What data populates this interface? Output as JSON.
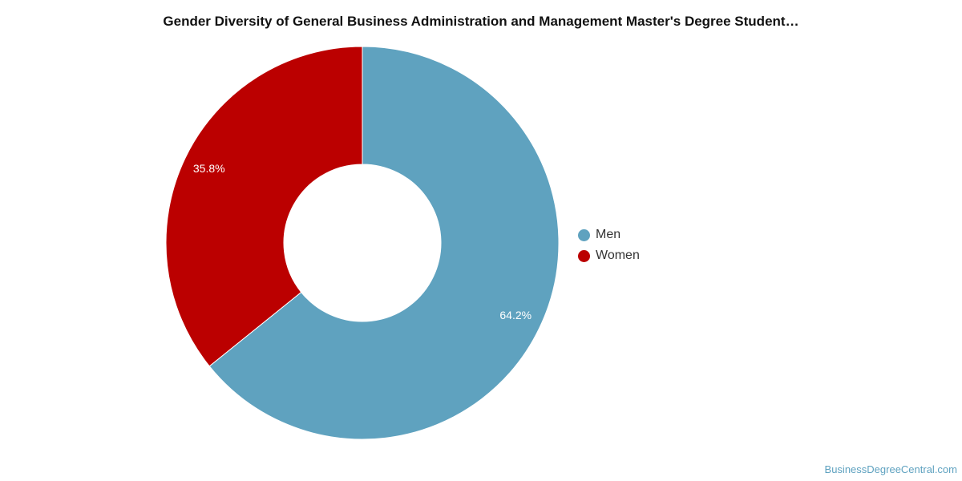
{
  "chart_data": {
    "type": "pie",
    "variant": "donut",
    "title": "Gender Diversity of General Business Administration and Management Master's Degree Student…",
    "slices": [
      {
        "label": "Men",
        "value": 64.2,
        "value_label": "64.2%",
        "color": "#5fa2bf"
      },
      {
        "label": "Women",
        "value": 35.8,
        "value_label": "35.8%",
        "color": "#bb0000"
      }
    ],
    "legend_position": "right"
  },
  "footer": {
    "watermark": "BusinessDegreeCentral.com"
  }
}
